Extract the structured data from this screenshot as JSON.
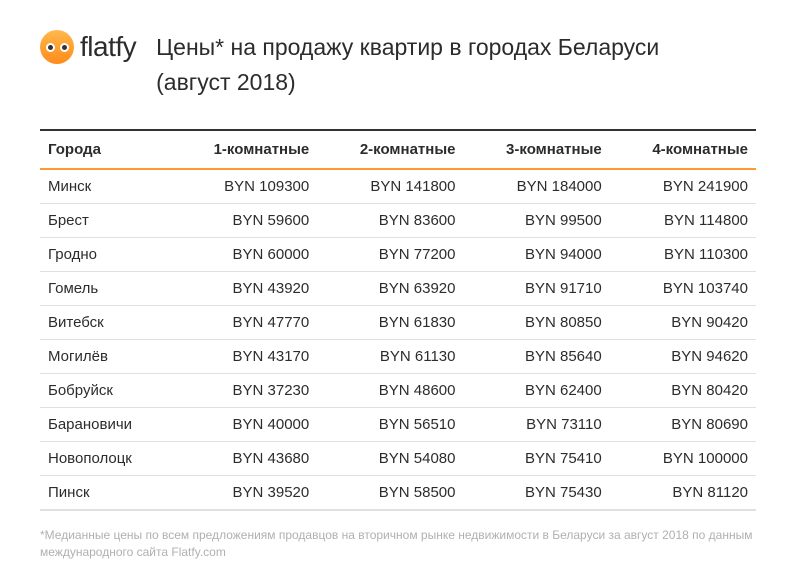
{
  "logo": {
    "text": "flatfy"
  },
  "title_line1": "Цены* на продажу квартир в городах Беларуси",
  "title_line2": "(август 2018)",
  "table": {
    "columns": [
      "Города",
      "1-комнатные",
      "2-комнатные",
      "3-комнатные",
      "4-комнатные"
    ],
    "rows": [
      [
        "Минск",
        "BYN 109300",
        "BYN 141800",
        "BYN 184000",
        "BYN 241900"
      ],
      [
        "Брест",
        "BYN 59600",
        "BYN 83600",
        "BYN 99500",
        "BYN 114800"
      ],
      [
        "Гродно",
        "BYN 60000",
        "BYN 77200",
        "BYN 94000",
        "BYN 110300"
      ],
      [
        "Гомель",
        "BYN 43920",
        "BYN 63920",
        "BYN 91710",
        "BYN 103740"
      ],
      [
        "Витебск",
        "BYN 47770",
        "BYN 61830",
        "BYN 80850",
        "BYN 90420"
      ],
      [
        "Могилёв",
        "BYN 43170",
        "BYN 61130",
        "BYN 85640",
        "BYN 94620"
      ],
      [
        "Бобруйск",
        "BYN 37230",
        "BYN 48600",
        "BYN 62400",
        "BYN 80420"
      ],
      [
        "Барановичи",
        "BYN 40000",
        "BYN 56510",
        "BYN 73110",
        "BYN 80690"
      ],
      [
        "Новополоцк",
        "BYN 43680",
        "BYN 54080",
        "BYN 75410",
        "BYN 100000"
      ],
      [
        "Пинск",
        "BYN 39520",
        "BYN 58500",
        "BYN 75430",
        "BYN 81120"
      ]
    ]
  },
  "footnote": "*Медианные цены по всем предложениям продавцов на вторичном рынке недвижимости в Беларуси за август 2018 по данным международного сайта Flatfy.com",
  "colors": {
    "accent": "#ff9933",
    "text": "#2c2c2c",
    "muted": "#b0b0b0",
    "border_light": "#e0e0e0"
  }
}
